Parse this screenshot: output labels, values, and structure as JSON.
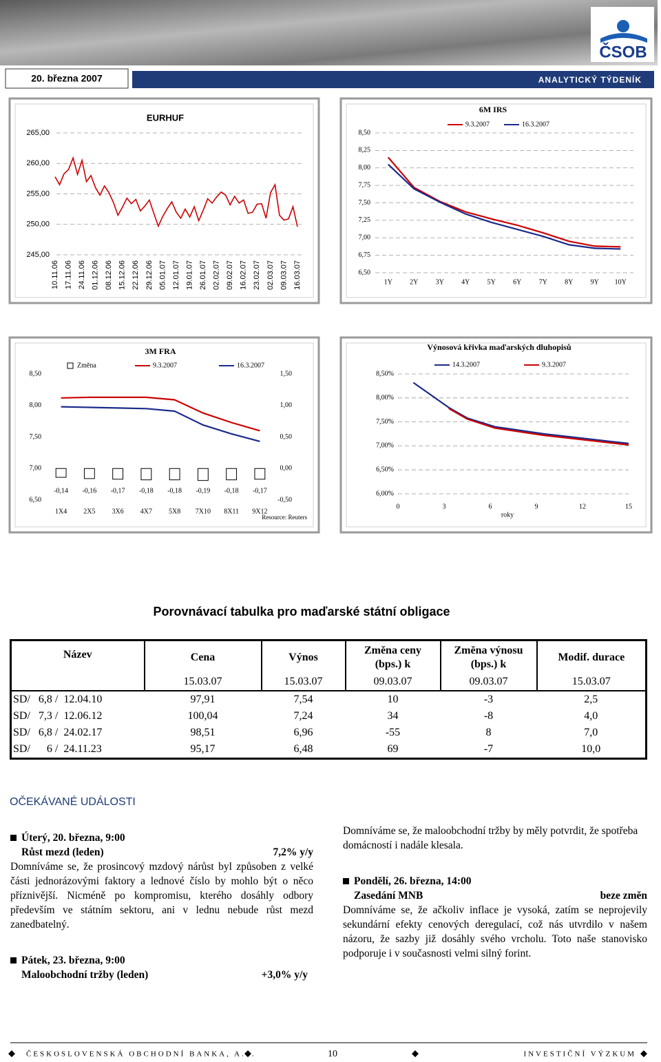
{
  "header": {
    "date": "20. března 2007",
    "publication": "ANALYTICKÝ TÝDENÍK",
    "logo": "ČSOB"
  },
  "chart_data": [
    {
      "type": "line",
      "title": "EURHUF",
      "categories": [
        "10.11.06",
        null,
        null,
        "17.11.06",
        null,
        null,
        "24.11.06",
        null,
        null,
        "01.12.06",
        null,
        null,
        "08.12.06",
        null,
        null,
        "15.12.06",
        null,
        null,
        "22.12.06",
        null,
        null,
        "29.12.06",
        null,
        null,
        "05.01.07",
        null,
        null,
        "12.01.07",
        null,
        null,
        "19.01.07",
        null,
        null,
        "26.01.07",
        null,
        null,
        "02.02.07",
        null,
        null,
        "09.02.07",
        null,
        null,
        "16.02.07",
        null,
        null,
        "23.02.07",
        null,
        null,
        "02.03.07",
        null,
        null,
        "09.03.07",
        null,
        null,
        "16.03.07"
      ],
      "series": [
        {
          "color": "#cc0000",
          "values": [
            257.8,
            256.5,
            258.3,
            259.0,
            260.9,
            258.2,
            260.5,
            257.0,
            258.0,
            256.0,
            254.8,
            256.3,
            255.2,
            253.6,
            251.5,
            252.8,
            254.3,
            253.4,
            254.1,
            252.2,
            253.0,
            254.0,
            251.8,
            249.7,
            251.3,
            252.6,
            253.7,
            252.0,
            251.0,
            252.5,
            251.2,
            252.9,
            250.6,
            252.3,
            254.2,
            253.5,
            254.5,
            255.3,
            254.8,
            253.2,
            254.6,
            253.5,
            254.0,
            251.8,
            252.0,
            253.3,
            253.4,
            251.0,
            255.2,
            256.5,
            251.5,
            250.7,
            250.9,
            252.9,
            249.6
          ]
        }
      ],
      "ylim": [
        245,
        265
      ],
      "yticks": [
        {
          "value": 245,
          "label": "245,00"
        },
        {
          "value": 250,
          "label": "250,00"
        },
        {
          "value": 255,
          "label": "255,00"
        },
        {
          "value": 260,
          "label": "260,00"
        },
        {
          "value": 265,
          "label": "265,00"
        }
      ],
      "grid": true
    },
    {
      "type": "line",
      "title": "6M IRS",
      "categories": [
        "1Y",
        "2Y",
        "3Y",
        "4Y",
        "5Y",
        "6Y",
        "7Y",
        "8Y",
        "9Y",
        "10Y"
      ],
      "series": [
        {
          "name": "9.3.2007",
          "color": "#cc0000",
          "values": [
            8.15,
            7.72,
            7.52,
            7.37,
            7.27,
            7.18,
            7.07,
            6.95,
            6.88,
            6.87
          ]
        },
        {
          "name": "16.3.2007",
          "color": "#1a2a8c",
          "values": [
            8.05,
            7.7,
            7.51,
            7.34,
            7.22,
            7.12,
            7.02,
            6.9,
            6.85,
            6.84
          ]
        }
      ],
      "ylim": [
        6.5,
        8.5
      ],
      "yticks": [
        {
          "value": 6.5,
          "label": "6,50"
        },
        {
          "value": 6.75,
          "label": "6,75"
        },
        {
          "value": 7,
          "label": "7,00"
        },
        {
          "value": 7.25,
          "label": "7,25"
        },
        {
          "value": 7.5,
          "label": "7,50"
        },
        {
          "value": 7.75,
          "label": "7,75"
        },
        {
          "value": 8,
          "label": "8,00"
        },
        {
          "value": 8.25,
          "label": "8,25"
        },
        {
          "value": 8.5,
          "label": "8,50"
        }
      ],
      "grid": true
    },
    {
      "type": "line",
      "title": "3M FRA",
      "categories": [
        "1X4",
        "2X5",
        "3X6",
        "4X7",
        "5X8",
        "7X10",
        "8X11",
        "9X12"
      ],
      "series": [
        {
          "name": "Změna",
          "type": "bar",
          "axis": "y2",
          "color": "#ffffff",
          "values": [
            -0.14,
            -0.16,
            -0.17,
            -0.18,
            -0.18,
            -0.19,
            -0.18,
            -0.17
          ],
          "value_labels": [
            "-0,14",
            "-0,16",
            "-0,17",
            "-0,18",
            "-0,18",
            "-0,19",
            "-0,18",
            "-0,17"
          ]
        },
        {
          "name": "9.3.2007",
          "color": "#cc0000",
          "values": [
            8.12,
            8.13,
            8.13,
            8.13,
            8.09,
            7.88,
            7.73,
            7.6
          ]
        },
        {
          "name": "16.3.2007",
          "color": "#1a2a8c",
          "values": [
            7.98,
            7.97,
            7.96,
            7.95,
            7.91,
            7.69,
            7.55,
            7.43
          ]
        }
      ],
      "ylim": [
        6.5,
        8.5
      ],
      "yticks": [
        {
          "value": 6.5,
          "label": "6,50"
        },
        {
          "value": 7,
          "label": "7,00"
        },
        {
          "value": 7.5,
          "label": "7,50"
        },
        {
          "value": 8,
          "label": "8,00"
        },
        {
          "value": 8.5,
          "label": "8,50"
        }
      ],
      "y2lim": [
        -0.5,
        1.5
      ],
      "y2ticks": [
        {
          "value": -0.5,
          "label": "-0,50"
        },
        {
          "value": 0,
          "label": "0,00"
        },
        {
          "value": 0.5,
          "label": "0,50"
        },
        {
          "value": 1,
          "label": "1,00"
        },
        {
          "value": 1.5,
          "label": "1,50"
        }
      ],
      "grid": false,
      "note": "Resource: Reuters"
    },
    {
      "type": "line",
      "title": "Výnosová křivka maďarských dluhopisů",
      "series": [
        {
          "name": "14.3.2007",
          "color": "#1a2a8c",
          "x": [
            1,
            3.3,
            4.5,
            6.3,
            9.5,
            15
          ],
          "values": [
            8.32,
            7.8,
            7.58,
            7.4,
            7.25,
            7.05
          ]
        },
        {
          "name": "9.3.2007",
          "color": "#cc0000",
          "x": [
            3.3,
            4.5,
            6.3,
            9.5,
            15
          ],
          "values": [
            7.78,
            7.56,
            7.37,
            7.22,
            7.02
          ]
        }
      ],
      "xlim": [
        0,
        15
      ],
      "xticks": [
        0,
        3,
        6,
        9,
        12,
        15
      ],
      "x_label": "roky",
      "ylim": [
        6,
        8.5
      ],
      "yticks": [
        {
          "value": 6,
          "label": "6,00%"
        },
        {
          "value": 6.5,
          "label": "6,50%"
        },
        {
          "value": 7,
          "label": "7,00%"
        },
        {
          "value": 7.5,
          "label": "7,50%"
        },
        {
          "value": 8,
          "label": "8,00%"
        },
        {
          "value": 8.5,
          "label": "8,50%"
        }
      ],
      "grid": true
    }
  ],
  "table": {
    "title": "Porovnávací tabulka pro maďarské státní obligace",
    "header": [
      "Název",
      "Cena",
      "Výnos",
      "Změna ceny (bps.) k",
      "Změna výnosu (bps.) k",
      "Modif. durace"
    ],
    "dates": [
      null,
      "15.03.07",
      "15.03.07",
      "09.03.07",
      "09.03.07",
      "15.03.07"
    ],
    "rows": [
      [
        "SD/   6,8 /  12.04.10",
        "97,91",
        "7,54",
        "10",
        "-3",
        "2,5"
      ],
      [
        "SD/   7,3 /  12.06.12",
        "100,04",
        "7,24",
        "34",
        "-8",
        "4,0"
      ],
      [
        "SD/   6,8 /  24.02.17",
        "98,51",
        "6,96",
        "-55",
        "8",
        "7,0"
      ],
      [
        "SD/      6 /  24.11.23",
        "95,17",
        "6,48",
        "69",
        "-7",
        "10,0"
      ]
    ]
  },
  "events": {
    "heading": "OČEKÁVANÉ UDÁLOSTI",
    "items": [
      {
        "when": "Úterý, 20. března, 9:00",
        "indicator": "Růst mezd (leden)",
        "forecast": "7,2% y/y",
        "text": "Domníváme se, že prosincový mzdový nárůst byl způsoben z velké části jednorázovými faktory a lednové číslo by mohlo být o něco příznivější. Nicméně po kompromisu, kterého dosáhly odbory především ve státním sektoru, ani v lednu nebude růst mezd zanedbatelný."
      },
      {
        "when": "Pátek, 23. března, 9:00",
        "indicator": "Maloobchodní tržby (leden)",
        "forecast": "+3,0% y/y",
        "text": "Domníváme se, že maloobchodní tržby by měly potvrdit, že spotřeba domácností i nadále klesala."
      },
      {
        "when": "Pondělí, 26. března, 14:00",
        "indicator": "Zasedání MNB",
        "forecast": "beze změn",
        "text": "Domníváme se, že ačkoliv inflace je vysoká, zatím se neprojevily sekundární efekty cenových deregulací, což nás utvrdilo v našem názoru, že sazby již dosáhly svého vrcholu. Toto naše stanovisko podporuje i v současnosti velmi silný forint."
      }
    ]
  },
  "footer": {
    "left": "ČESKOSLOVENSKÁ OBCHODNÍ BANKA, A.S.",
    "page": "10",
    "right": "INVESTIČNÍ VÝZKUM"
  }
}
